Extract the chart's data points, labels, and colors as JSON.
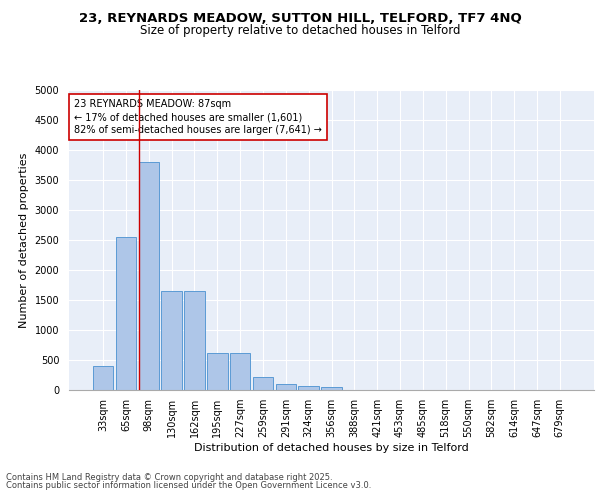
{
  "title_line1": "23, REYNARDS MEADOW, SUTTON HILL, TELFORD, TF7 4NQ",
  "title_line2": "Size of property relative to detached houses in Telford",
  "xlabel": "Distribution of detached houses by size in Telford",
  "ylabel": "Number of detached properties",
  "categories": [
    "33sqm",
    "65sqm",
    "98sqm",
    "130sqm",
    "162sqm",
    "195sqm",
    "227sqm",
    "259sqm",
    "291sqm",
    "324sqm",
    "356sqm",
    "388sqm",
    "421sqm",
    "453sqm",
    "485sqm",
    "518sqm",
    "550sqm",
    "582sqm",
    "614sqm",
    "647sqm",
    "679sqm"
  ],
  "values": [
    400,
    2550,
    3800,
    1650,
    1650,
    620,
    620,
    220,
    100,
    60,
    45,
    0,
    0,
    0,
    0,
    0,
    0,
    0,
    0,
    0,
    0
  ],
  "bar_color": "#aec6e8",
  "bar_edge_color": "#5b9bd5",
  "vline_x": 1.55,
  "vline_color": "#cc0000",
  "annotation_text": "23 REYNARDS MEADOW: 87sqm\n← 17% of detached houses are smaller (1,601)\n82% of semi-detached houses are larger (7,641) →",
  "annotation_box_color": "#cc0000",
  "ylim": [
    0,
    5000
  ],
  "yticks": [
    0,
    500,
    1000,
    1500,
    2000,
    2500,
    3000,
    3500,
    4000,
    4500,
    5000
  ],
  "background_color": "#e8eef8",
  "grid_color": "#ffffff",
  "footer_line1": "Contains HM Land Registry data © Crown copyright and database right 2025.",
  "footer_line2": "Contains public sector information licensed under the Open Government Licence v3.0.",
  "title_fontsize": 9.5,
  "subtitle_fontsize": 8.5,
  "tick_fontsize": 7,
  "ylabel_fontsize": 8,
  "xlabel_fontsize": 8,
  "annotation_fontsize": 7,
  "footer_fontsize": 6
}
